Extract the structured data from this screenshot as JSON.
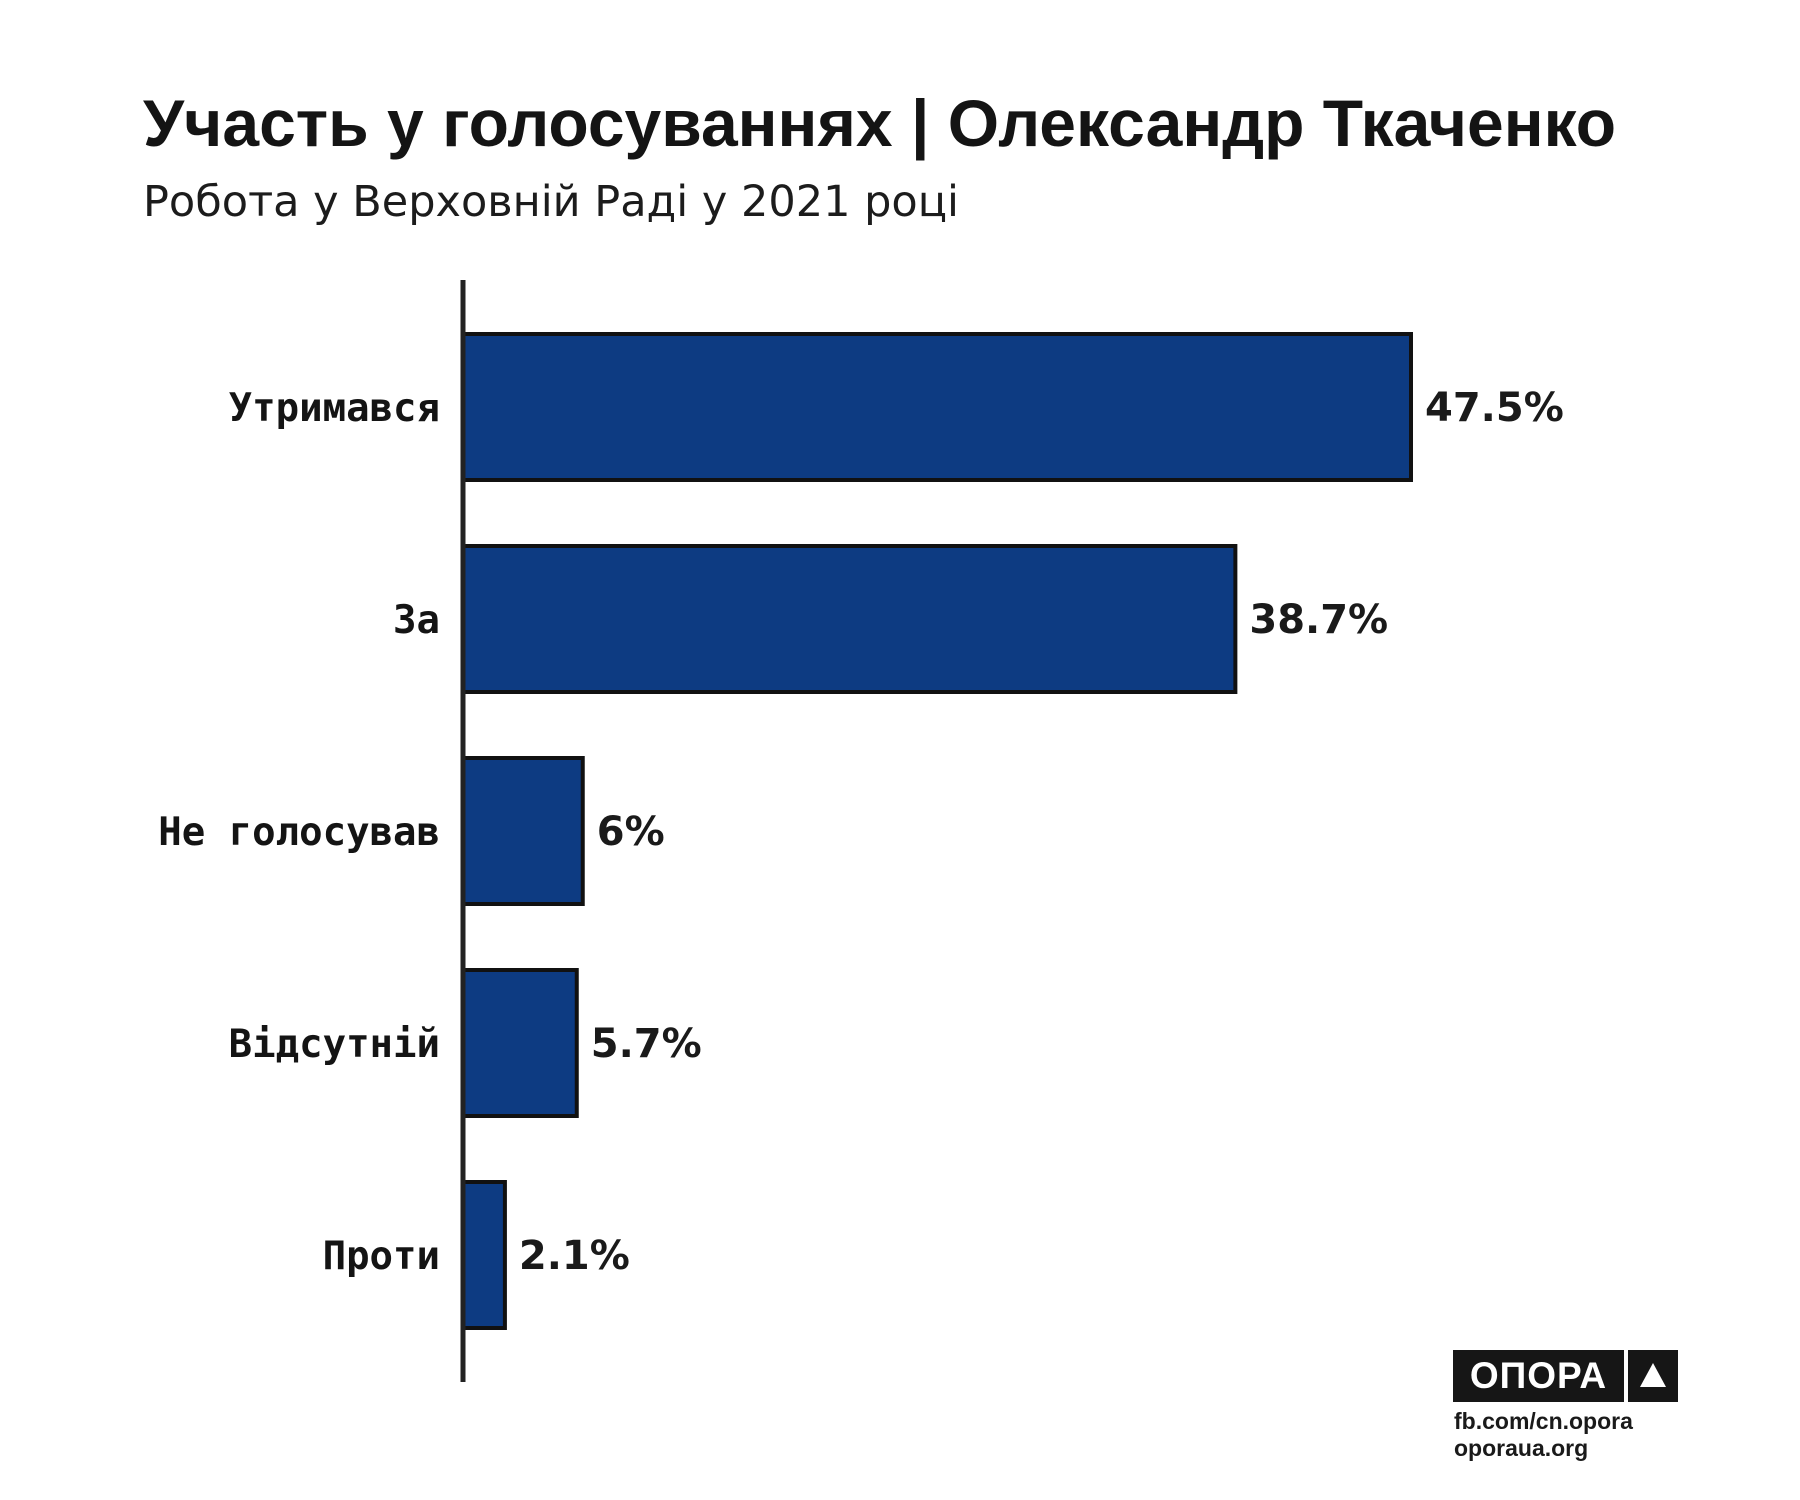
{
  "header": {
    "title": "Участь у голосуваннях | Олександр Ткаченко",
    "subtitle": "Робота у Верховній Раді у 2021 році"
  },
  "chart_data": {
    "type": "bar",
    "orientation": "horizontal",
    "title": "Участь у голосуваннях | Олександр Ткаченко",
    "subtitle": "Робота у Верховній Раді у 2021 році",
    "xlabel": "",
    "ylabel": "",
    "categories": [
      "Утримався",
      "За",
      "Не голосував",
      "Відсутній",
      "Проти"
    ],
    "values": [
      47.5,
      38.7,
      6,
      5.7,
      2.1
    ],
    "value_labels": [
      "47.5%",
      "38.7%",
      "6%",
      "5.7%",
      "2.1%"
    ],
    "unit": "%",
    "xlim": [
      0,
      60
    ],
    "grid": false,
    "legend": "none",
    "colors": {
      "bar_fill": "#0d3b82",
      "bar_stroke": "#111111",
      "axis": "#222222"
    }
  },
  "branding": {
    "logo_text": "ОПОРА",
    "logo_mark_icon": "triangle-up-icon",
    "links": [
      "fb.com/cn.opora",
      "oporaua.org"
    ]
  }
}
